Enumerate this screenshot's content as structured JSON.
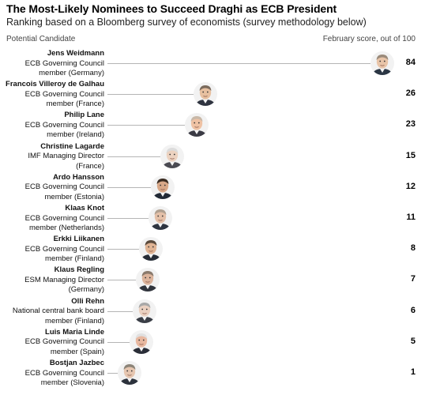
{
  "header": {
    "title": "The Most-Likely Nominees to Succeed Draghi as ECB President",
    "subtitle": "Ranking based on a Bloomberg survey of economists (survey methodology below)",
    "left_column": "Potential Candidate",
    "right_column": "February score, out of 100"
  },
  "chart_data": {
    "type": "bar",
    "title": "The Most-Likely Nominees to Succeed Draghi as ECB President",
    "subtitle": "Ranking based on a Bloomberg survey of economists (survey methodology below)",
    "xlabel": "February score, out of 100",
    "xlim": [
      0,
      100
    ],
    "categories": [
      "Jens Weidmann",
      "Francois Villeroy de Galhau",
      "Philip Lane",
      "Christine Lagarde",
      "Ardo Hansson",
      "Klaas Knot",
      "Erkki Liikanen",
      "Klaus Regling",
      "Olli Rehn",
      "Luis Maria Linde",
      "Bostjan Jazbec"
    ],
    "values": [
      84,
      26,
      23,
      15,
      12,
      11,
      8,
      7,
      6,
      5,
      1
    ],
    "candidates": [
      {
        "name": "Jens Weidmann",
        "role": [
          "ECB Governing Council",
          "member (Germany)"
        ],
        "score": 84,
        "skin": "#e8c4a8",
        "hair": "#9a8a7a",
        "suit": "#2b3644"
      },
      {
        "name": "Francois Villeroy de Galhau",
        "role": [
          "ECB Governing Council",
          "member (France)"
        ],
        "score": 26,
        "skin": "#e7c0a0",
        "hair": "#7a6a5c",
        "suit": "#2f3440"
      },
      {
        "name": "Philip Lane",
        "role": [
          "ECB Governing Council",
          "member (Ireland)"
        ],
        "score": 23,
        "skin": "#efc2a4",
        "hair": "#c8b8a8",
        "suit": "#3a3a44"
      },
      {
        "name": "Christine Lagarde",
        "role": [
          "IMF Managing Director",
          "(France)"
        ],
        "score": 15,
        "skin": "#ecd2c0",
        "hair": "#dcdcdc",
        "suit": "#4a4a52"
      },
      {
        "name": "Ardo Hansson",
        "role": [
          "ECB Governing Council",
          "member (Estonia)"
        ],
        "score": 12,
        "skin": "#d8a888",
        "hair": "#3a2c22",
        "suit": "#222a36"
      },
      {
        "name": "Klaas Knot",
        "role": [
          "ECB Governing Council",
          "member (Netherlands)"
        ],
        "score": 11,
        "skin": "#e4c0a8",
        "hair": "#b0a090",
        "suit": "#2e3440"
      },
      {
        "name": "Erkki Liikanen",
        "role": [
          "ECB Governing Council",
          "member (Finland)"
        ],
        "score": 8,
        "skin": "#e0b494",
        "hair": "#5a4a3c",
        "suit": "#262c36"
      },
      {
        "name": "Klaus Regling",
        "role": [
          "ESM Managing Director",
          "(Germany)"
        ],
        "score": 7,
        "skin": "#dcb49c",
        "hair": "#8a7a6c",
        "suit": "#30343c"
      },
      {
        "name": "Olli Rehn",
        "role": [
          "National central bank board",
          "member (Finland)"
        ],
        "score": 6,
        "skin": "#ead0c0",
        "hair": "#a8a8a8",
        "suit": "#3a3e46"
      },
      {
        "name": "Luis Maria Linde",
        "role": [
          "ECB Governing Council",
          "member (Spain)"
        ],
        "score": 5,
        "skin": "#e8b8a0",
        "hair": "#e0e0e0",
        "suit": "#2a2e38"
      },
      {
        "name": "Bostjan Jazbec",
        "role": [
          "ECB Governing Council",
          "member (Slovenia)"
        ],
        "score": 1,
        "skin": "#e6c6b0",
        "hair": "#8c8478",
        "suit": "#2c323c"
      }
    ]
  }
}
